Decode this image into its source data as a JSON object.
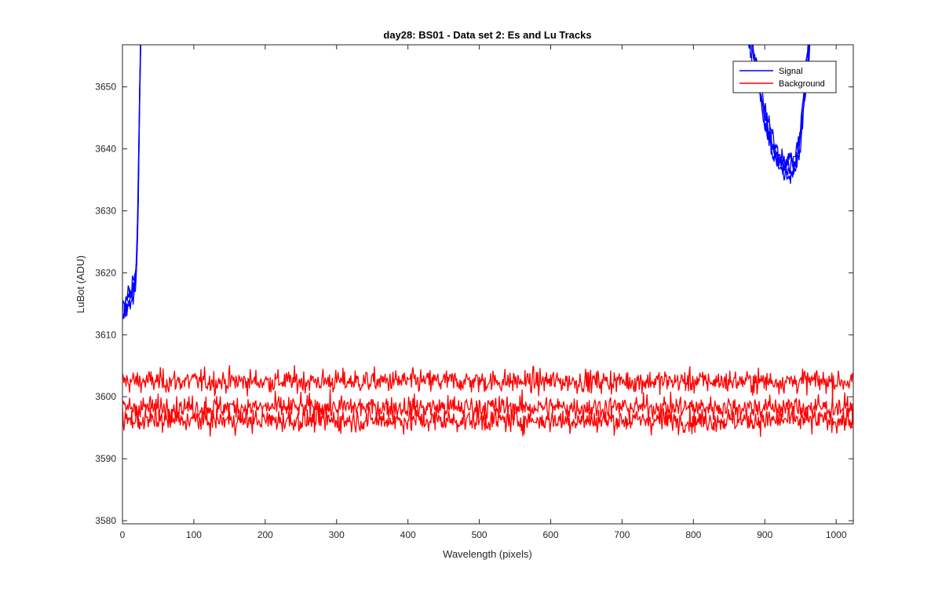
{
  "chart_data": {
    "type": "line",
    "title": "day28: BS01 - Data set 2: Es and Lu Tracks",
    "xlabel": "Wavelength (pixels)",
    "ylabel": "LuBot (ADU)",
    "xlim": [
      0,
      1024
    ],
    "ylim": [
      3579.5,
      3656.8
    ],
    "x_ticks": [
      0,
      100,
      200,
      300,
      400,
      500,
      600,
      700,
      800,
      900,
      1000
    ],
    "y_ticks": [
      3580,
      3590,
      3600,
      3610,
      3620,
      3630,
      3640,
      3650
    ],
    "grid": false,
    "legend_position": "top-right",
    "series": [
      {
        "name": "Signal",
        "color": "#0000ff",
        "tracks": 4,
        "noise": 1.2,
        "segments": [
          {
            "x": [
              0,
              5,
              10,
              15,
              18,
              20,
              22,
              24,
              26
            ],
            "y": [
              3613,
              3615,
              3616,
              3617,
              3619,
              3622,
              3632,
              3648,
              3660
            ]
          },
          {
            "x": [
              872,
              880,
              890,
              900,
              910,
              920,
              930,
              940,
              948,
              955,
              960,
              965
            ],
            "y": [
              3660,
              3657,
              3652,
              3645,
              3641,
              3638,
              3637,
              3637,
              3640,
              3648,
              3655,
              3660
            ]
          }
        ]
      },
      {
        "name": "Background",
        "color": "#ff0000",
        "tracks": 3,
        "noise": 1.6,
        "baselines": [
          3602.5,
          3598.3,
          3596.2
        ],
        "x_range": [
          0,
          1024
        ],
        "min_value": 3589.8,
        "max_value": 3607.2
      }
    ]
  }
}
